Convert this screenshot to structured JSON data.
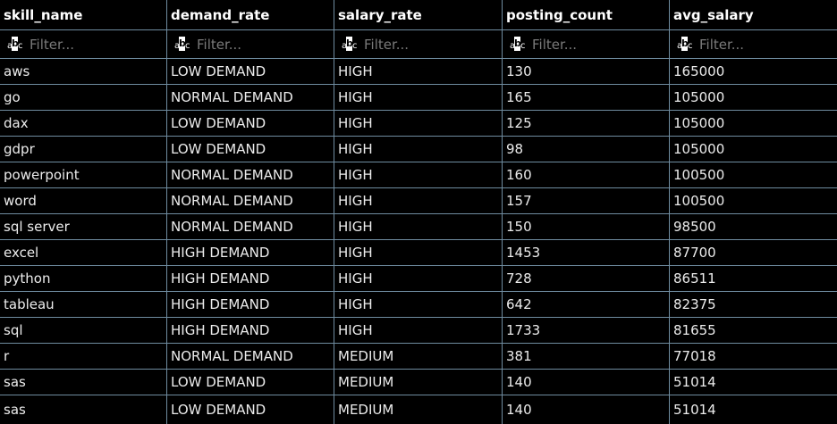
{
  "columns": [
    "skill_name",
    "demand_rate",
    "salary_rate",
    "posting_count",
    "avg_salary"
  ],
  "filter": {
    "placeholder": "Filter..."
  },
  "rows": [
    [
      "aws",
      "LOW DEMAND",
      "HIGH",
      "130",
      "165000"
    ],
    [
      "go",
      "NORMAL DEMAND",
      "HIGH",
      "165",
      "105000"
    ],
    [
      "dax",
      "LOW DEMAND",
      "HIGH",
      "125",
      "105000"
    ],
    [
      "gdpr",
      "LOW DEMAND",
      "HIGH",
      "98",
      "105000"
    ],
    [
      "powerpoint",
      "NORMAL DEMAND",
      "HIGH",
      "160",
      "100500"
    ],
    [
      "word",
      "NORMAL DEMAND",
      "HIGH",
      "157",
      "100500"
    ],
    [
      "sql server",
      "NORMAL DEMAND",
      "HIGH",
      "150",
      "98500"
    ],
    [
      "excel",
      "HIGH DEMAND",
      "HIGH",
      "1453",
      "87700"
    ],
    [
      "python",
      "HIGH DEMAND",
      "HIGH",
      "728",
      "86511"
    ],
    [
      "tableau",
      "HIGH DEMAND",
      "HIGH",
      "642",
      "82375"
    ],
    [
      "sql",
      "HIGH DEMAND",
      "HIGH",
      "1733",
      "81655"
    ],
    [
      "r",
      "NORMAL DEMAND",
      "MEDIUM",
      "381",
      "77018"
    ],
    [
      "sas",
      "LOW DEMAND",
      "MEDIUM",
      "140",
      "51014"
    ],
    [
      "sas",
      "LOW DEMAND",
      "MEDIUM",
      "140",
      "51014"
    ]
  ],
  "colors": {
    "background": "#000000",
    "grid_line": "#6f8ca0",
    "text": "#ececec",
    "placeholder": "#7a7a7a"
  },
  "icons": {
    "filter": "text-filter-icon"
  }
}
